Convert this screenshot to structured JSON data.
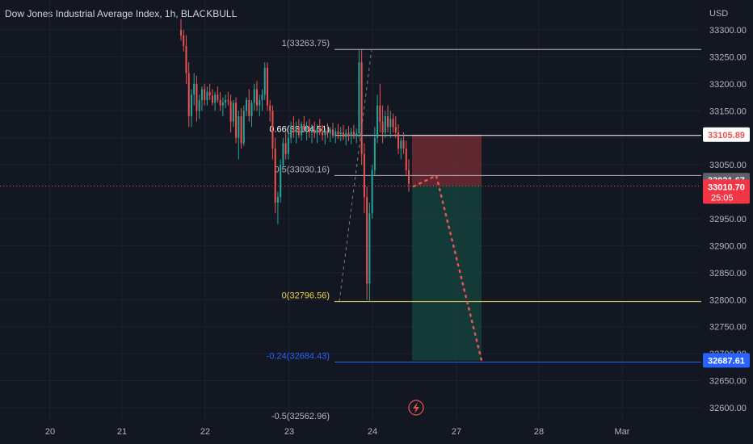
{
  "header": {
    "symbol_title": "Dow Jones Industrial Average Index, 1h, BLACKBULL"
  },
  "colors": {
    "background": "#131722",
    "grid": "#1e2230",
    "axis_text": "#b2b5be",
    "up_candle": "#26a69a",
    "down_candle": "#ef5350",
    "fib_top": "#b2b5be",
    "fib_066": "#ffffff",
    "fib_05": "#b2b5be",
    "fib_0": "#f0d44a",
    "fib_neg": "#2962ff",
    "stop_zone": "#7a2f35",
    "target_zone": "#15433f",
    "price_badge_red": "#f23645",
    "price_badge_grey": "#5d606b",
    "price_badge_blue": "#2962ff"
  },
  "chart_data": {
    "type": "candlestick",
    "title": "Dow Jones Industrial Average Index, 1h, BLACKBULL",
    "currency_label": "USD",
    "y_axis": {
      "ylim": [
        32580,
        33325
      ],
      "ticks": [
        "33300.00",
        "33250.00",
        "33200.00",
        "33150.00",
        "33100.00",
        "33050.00",
        "32950.00",
        "32900.00",
        "32850.00",
        "32800.00",
        "32750.00",
        "32700.00",
        "32650.00",
        "32600.00"
      ],
      "tick_values": [
        33300,
        33250,
        33200,
        33150,
        33100,
        33050,
        32950,
        32900,
        32850,
        32800,
        32750,
        32700,
        32650,
        32600
      ]
    },
    "x_axis": {
      "ticks": [
        "20",
        "21",
        "22",
        "23",
        "24",
        "27",
        "28",
        "Mar"
      ]
    },
    "fib_levels": [
      {
        "label": "1(33263.75)",
        "value": 33263.75,
        "key": "top"
      },
      {
        "label": "0.66(33104.51)",
        "value": 33104.51,
        "key": "l066"
      },
      {
        "label": "0.5(33030.16)",
        "value": 33030.16,
        "key": "l05"
      },
      {
        "label": "0(32796.56)",
        "value": 32796.56,
        "key": "zero"
      },
      {
        "label": "-0.24(32684.43)",
        "value": 32684.43,
        "key": "neg"
      },
      {
        "label": "-0.5(32562.96)",
        "value": 32562.96,
        "key": "neg05"
      }
    ],
    "price_badges": [
      {
        "label": "33105.89",
        "value": 33105.89,
        "kind": "white"
      },
      {
        "label": "33021.67",
        "value": 33021.67,
        "kind": "grey"
      },
      {
        "label": "33010.70",
        "value": 33010.7,
        "kind": "red",
        "sub": "25:05"
      },
      {
        "label": "32687.61",
        "value": 32687.61,
        "kind": "blue"
      }
    ],
    "position": {
      "entry": 33010.7,
      "stop": 33105.89,
      "target": 32687.61
    },
    "candles": [
      [
        33300,
        33320,
        33280,
        33290
      ],
      [
        33290,
        33300,
        33260,
        33270
      ],
      [
        33270,
        33290,
        33200,
        33220
      ],
      [
        33220,
        33240,
        33120,
        33140
      ],
      [
        33140,
        33190,
        33120,
        33180
      ],
      [
        33180,
        33220,
        33160,
        33200
      ],
      [
        33200,
        33215,
        33130,
        33150
      ],
      [
        33150,
        33180,
        33135,
        33170
      ],
      [
        33170,
        33195,
        33150,
        33190
      ],
      [
        33190,
        33200,
        33160,
        33170
      ],
      [
        33170,
        33195,
        33160,
        33185
      ],
      [
        33185,
        33200,
        33170,
        33178
      ],
      [
        33178,
        33190,
        33160,
        33165
      ],
      [
        33165,
        33185,
        33150,
        33180
      ],
      [
        33180,
        33195,
        33165,
        33170
      ],
      [
        33170,
        33185,
        33150,
        33160
      ],
      [
        33160,
        33175,
        33140,
        33165
      ],
      [
        33165,
        33180,
        33155,
        33170
      ],
      [
        33170,
        33185,
        33160,
        33168
      ],
      [
        33168,
        33180,
        33110,
        33130
      ],
      [
        33130,
        33170,
        33120,
        33165
      ],
      [
        33165,
        33175,
        33090,
        33100
      ],
      [
        33100,
        33150,
        33060,
        33140
      ],
      [
        33140,
        33155,
        33080,
        33090
      ],
      [
        33090,
        33160,
        33085,
        33150
      ],
      [
        33150,
        33175,
        33140,
        33170
      ],
      [
        33170,
        33190,
        33130,
        33140
      ],
      [
        33140,
        33170,
        33120,
        33165
      ],
      [
        33165,
        33200,
        33150,
        33190
      ],
      [
        33190,
        33205,
        33150,
        33160
      ],
      [
        33160,
        33180,
        33140,
        33170
      ],
      [
        33170,
        33190,
        33150,
        33180
      ],
      [
        33180,
        33240,
        33170,
        33230
      ],
      [
        33230,
        33240,
        33150,
        33160
      ],
      [
        33160,
        33170,
        33130,
        33150
      ],
      [
        33150,
        33160,
        33060,
        33080
      ],
      [
        33080,
        33100,
        32960,
        32980
      ],
      [
        32980,
        33000,
        32940,
        32990
      ],
      [
        32990,
        33060,
        32980,
        33050
      ],
      [
        33050,
        33100,
        33040,
        33090
      ],
      [
        33090,
        33110,
        33060,
        33070
      ],
      [
        33070,
        33110,
        33060,
        33100
      ],
      [
        33100,
        33130,
        33090,
        33120
      ],
      [
        33120,
        33140,
        33100,
        33110
      ],
      [
        33110,
        33130,
        33090,
        33120
      ],
      [
        33120,
        33135,
        33100,
        33105
      ],
      [
        33105,
        33130,
        33095,
        33125
      ],
      [
        33125,
        33140,
        33110,
        33115
      ],
      [
        33115,
        33130,
        33095,
        33120
      ],
      [
        33120,
        33135,
        33100,
        33110
      ],
      [
        33110,
        33125,
        33090,
        33115
      ],
      [
        33115,
        33130,
        33100,
        33108
      ],
      [
        33108,
        33125,
        33090,
        33118
      ],
      [
        33118,
        33135,
        33105,
        33110
      ],
      [
        33110,
        33124,
        33095,
        33105
      ],
      [
        33105,
        33118,
        33088,
        33112
      ],
      [
        33112,
        33127,
        33100,
        33108
      ],
      [
        33108,
        33120,
        33092,
        33115
      ],
      [
        33115,
        33128,
        33100,
        33104
      ],
      [
        33104,
        33118,
        33090,
        33112
      ],
      [
        33112,
        33126,
        33098,
        33107
      ],
      [
        33107,
        33120,
        33094,
        33110
      ],
      [
        33110,
        33124,
        33096,
        33102
      ],
      [
        33102,
        33116,
        33086,
        33109
      ],
      [
        33109,
        33122,
        33094,
        33104
      ],
      [
        33104,
        33118,
        33088,
        33111
      ],
      [
        33111,
        33124,
        33098,
        33103
      ],
      [
        33103,
        33117,
        33090,
        33108
      ],
      [
        33108,
        33263,
        33100,
        33240
      ],
      [
        33240,
        33263,
        33050,
        33070
      ],
      [
        33070,
        33090,
        32960,
        32990
      ],
      [
        32990,
        33010,
        32800,
        32830
      ],
      [
        32830,
        32980,
        32796,
        32960
      ],
      [
        32960,
        33050,
        32950,
        33040
      ],
      [
        33040,
        33120,
        33030,
        33100
      ],
      [
        33100,
        33180,
        33090,
        33160
      ],
      [
        33160,
        33200,
        33110,
        33130
      ],
      [
        33130,
        33160,
        33090,
        33110
      ],
      [
        33110,
        33150,
        33100,
        33140
      ],
      [
        33140,
        33160,
        33110,
        33120
      ],
      [
        33120,
        33150,
        33100,
        33135
      ],
      [
        33135,
        33145,
        33110,
        33120
      ],
      [
        33120,
        33140,
        33100,
        33110
      ],
      [
        33110,
        33125,
        33070,
        33080
      ],
      [
        33080,
        33100,
        33060,
        33095
      ],
      [
        33095,
        33110,
        33070,
        33080
      ],
      [
        33080,
        33095,
        33030,
        33040
      ],
      [
        33040,
        33060,
        33000,
        33015
      ]
    ]
  }
}
